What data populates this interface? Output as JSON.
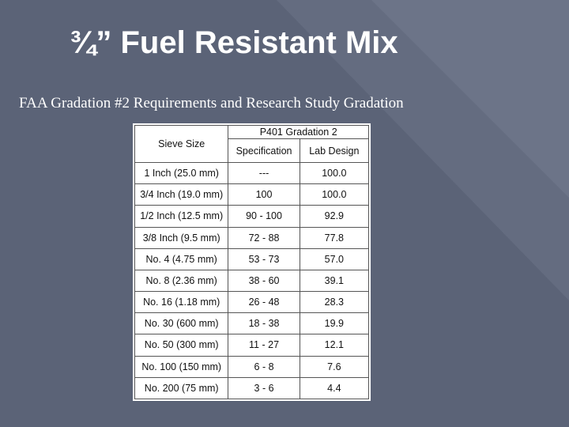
{
  "slide": {
    "title": "¾” Fuel Resistant Mix",
    "subtitle": "FAA Gradation #2 Requirements and Research Study Gradation"
  },
  "table": {
    "col_sieve": "Sieve Size",
    "group_header": "P401 Gradation 2",
    "col_spec": "Specification",
    "col_lab": "Lab Design",
    "rows": [
      {
        "sieve": "1 Inch (25.0 mm)",
        "spec": "---",
        "lab": "100.0"
      },
      {
        "sieve": "3/4 Inch (19.0 mm)",
        "spec": "100",
        "lab": "100.0"
      },
      {
        "sieve": "1/2 Inch (12.5 mm)",
        "spec": "90 - 100",
        "lab": "92.9"
      },
      {
        "sieve": "3/8 Inch (9.5 mm)",
        "spec": "72 - 88",
        "lab": "77.8"
      },
      {
        "sieve": "No. 4 (4.75 mm)",
        "spec": "53 - 73",
        "lab": "57.0"
      },
      {
        "sieve": "No. 8 (2.36 mm)",
        "spec": "38 - 60",
        "lab": "39.1"
      },
      {
        "sieve": "No. 16 (1.18 mm)",
        "spec": "26 - 48",
        "lab": "28.3"
      },
      {
        "sieve": "No. 30 (600 mm)",
        "spec": "18 - 38",
        "lab": "19.9"
      },
      {
        "sieve": "No. 50 (300 mm)",
        "spec": "11 - 27",
        "lab": "12.1"
      },
      {
        "sieve": "No. 100 (150 mm)",
        "spec": "6 - 8",
        "lab": "7.6"
      },
      {
        "sieve": "No. 200 (75 mm)",
        "spec": "3 - 6",
        "lab": "4.4"
      }
    ]
  }
}
